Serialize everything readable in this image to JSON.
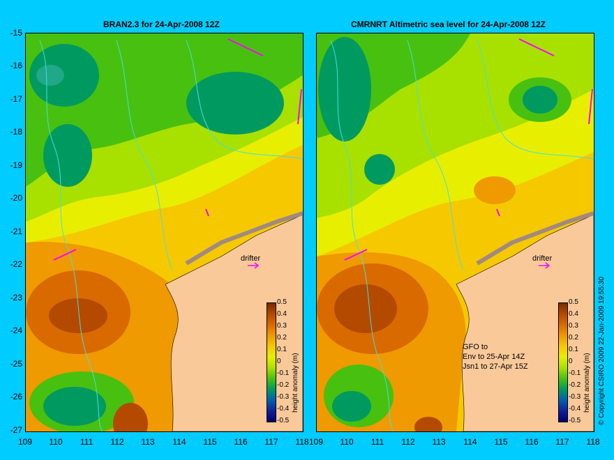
{
  "left_panel": {
    "title": "BRAN2.3 for 24-Apr-2008 12Z"
  },
  "right_panel": {
    "title": "CMRNRT Altimetric sea level  for 24-Apr-2008 12Z"
  },
  "y_axis": {
    "labels": [
      "-15",
      "-16",
      "-17",
      "-18",
      "-19",
      "-20",
      "-21",
      "-22",
      "-23",
      "-24",
      "-25",
      "-26",
      "-27"
    ]
  },
  "x_axis": {
    "labels": [
      "109",
      "110",
      "111",
      "112",
      "113",
      "114",
      "115",
      "116",
      "117",
      "118"
    ]
  },
  "colorbar": {
    "title": "height anomaly (m)",
    "labels": [
      "0.5",
      "0.4",
      "0.3",
      "0.2",
      "0.1",
      "0",
      "-0.1",
      "-0.2",
      "-0.3",
      "-0.4",
      "-0.5"
    ],
    "colors": [
      "#7a2a00",
      "#b34a00",
      "#d96a00",
      "#ef9a00",
      "#f6c800",
      "#e8ee00",
      "#a8e000",
      "#48c010",
      "#009a60",
      "#0060b0",
      "#10209a",
      "#000070"
    ]
  },
  "drifter_label": "drifter",
  "info_lines": [
    "GFO to",
    "Env to 25-Apr 14Z",
    "Jsn1 to 27-Apr 15Z"
  ],
  "copyright": "© Copyright CSIRO 2009   22-Jan-2009 19:55:30",
  "colors": {
    "land": "#f9c99a",
    "coast": "#40e0e0",
    "drifter": "#ff00ff",
    "background": "#00ccff"
  }
}
